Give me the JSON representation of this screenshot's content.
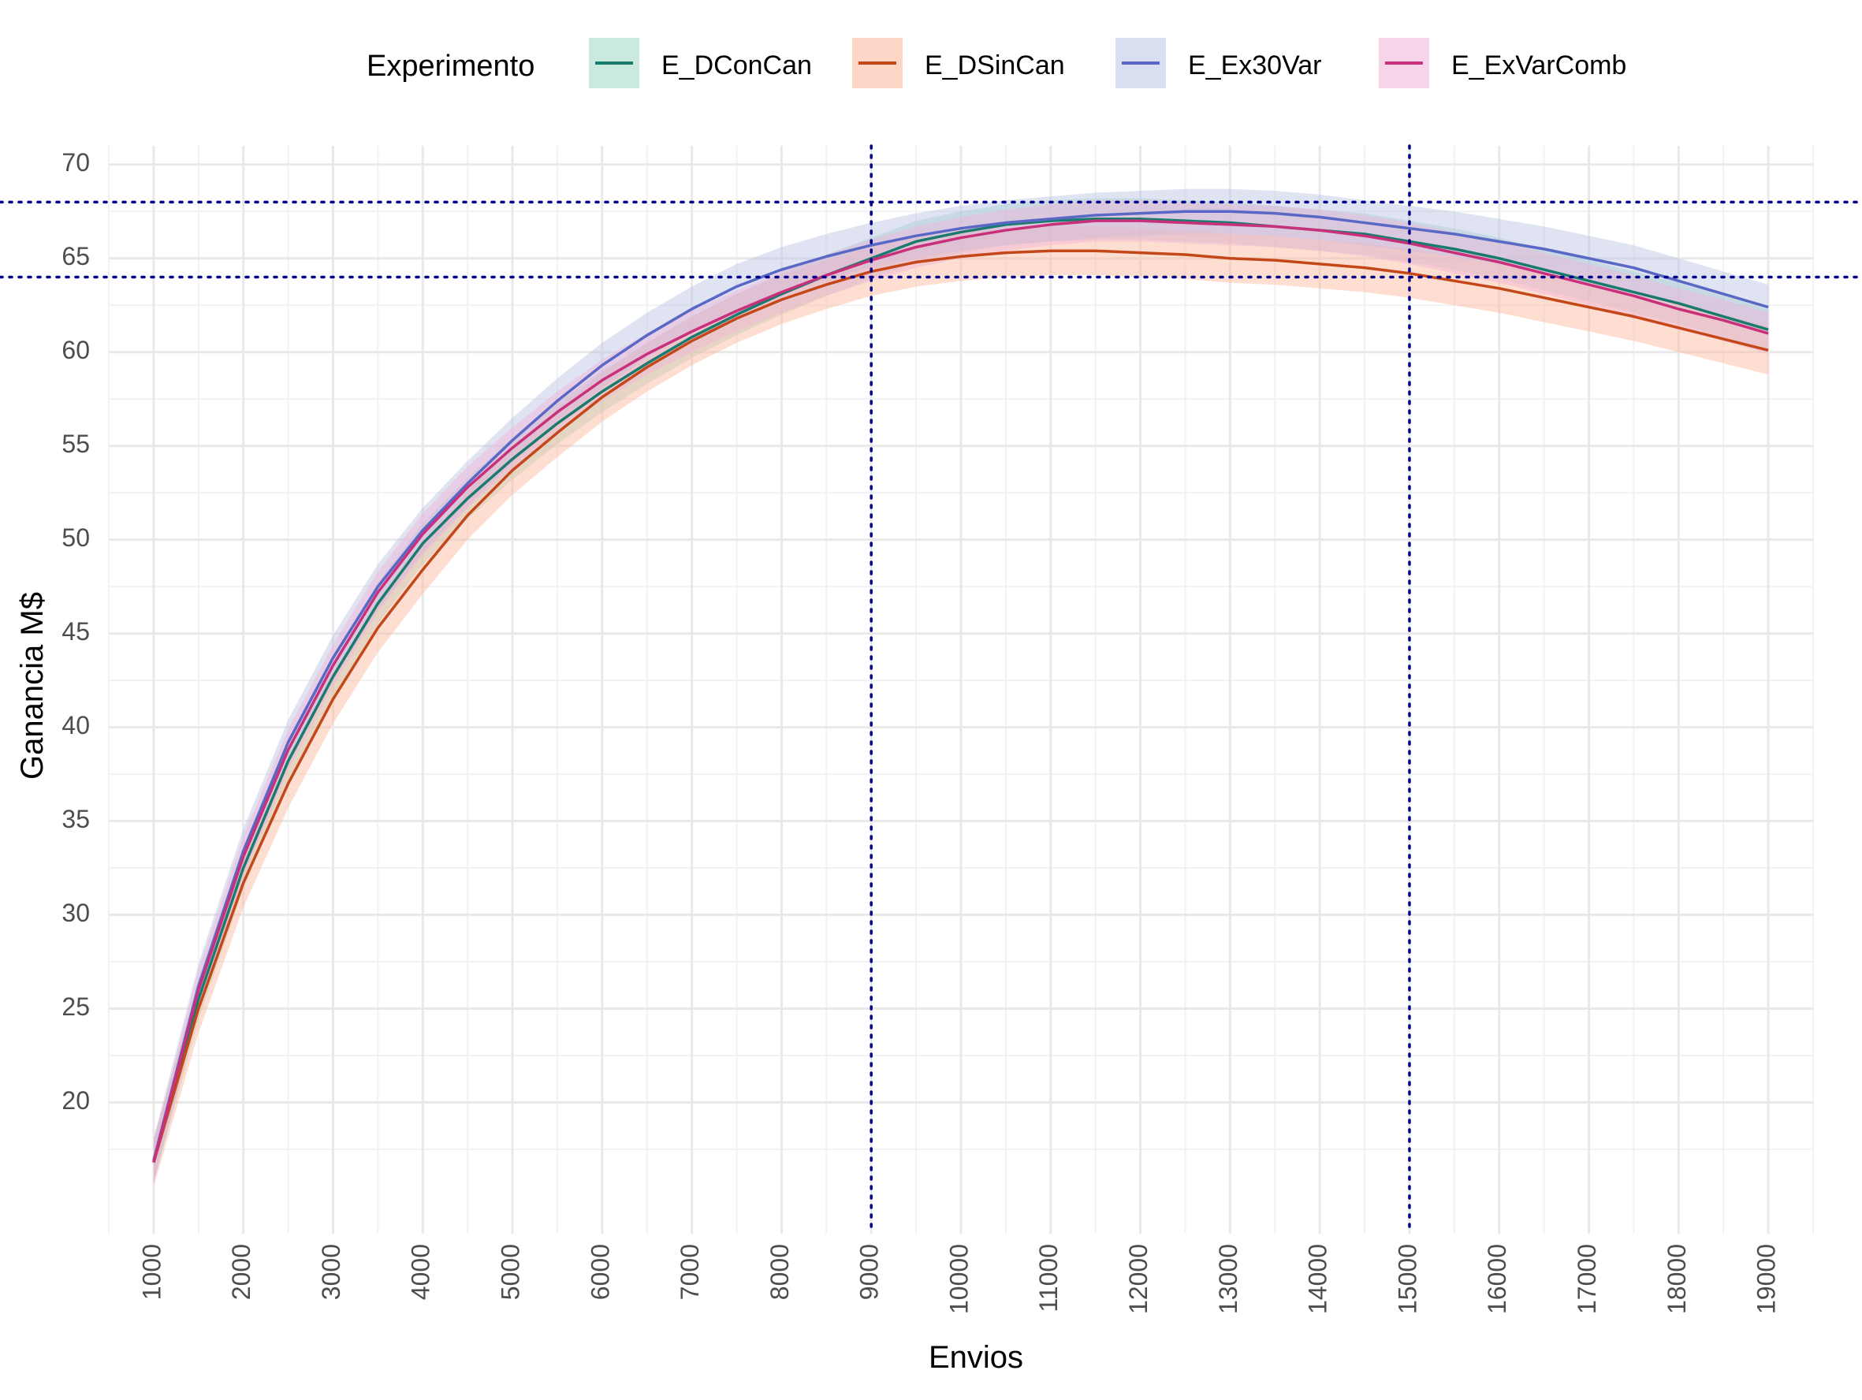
{
  "chart_data": {
    "type": "line",
    "title": "",
    "xlabel": "Envios",
    "ylabel": "Ganancia M$",
    "legend_title": "Experimento",
    "legend_position": "top",
    "xlim": [
      500,
      19500
    ],
    "ylim": [
      13,
      71
    ],
    "x_ticks": [
      1000,
      2000,
      3000,
      4000,
      5000,
      6000,
      7000,
      8000,
      9000,
      10000,
      11000,
      12000,
      13000,
      14000,
      15000,
      16000,
      17000,
      18000,
      19000
    ],
    "y_ticks": [
      20,
      25,
      30,
      35,
      40,
      45,
      50,
      55,
      60,
      65,
      70
    ],
    "x_tick_labels": [
      "1000",
      "2000",
      "3000",
      "4000",
      "5000",
      "6000",
      "7000",
      "8000",
      "9000",
      "10000",
      "11000",
      "12000",
      "13000",
      "14000",
      "15000",
      "16000",
      "17000",
      "18000",
      "19000"
    ],
    "y_tick_labels": [
      "20",
      "25",
      "30",
      "35",
      "40",
      "45",
      "50",
      "55",
      "60",
      "65",
      "70"
    ],
    "grid": true,
    "x": [
      1000,
      1500,
      2000,
      2500,
      3000,
      3500,
      4000,
      4500,
      5000,
      5500,
      6000,
      6500,
      7000,
      7500,
      8000,
      8500,
      9000,
      9500,
      10000,
      10500,
      11000,
      11500,
      12000,
      12500,
      13000,
      13500,
      14000,
      14500,
      15000,
      15500,
      16000,
      16500,
      17000,
      17500,
      18000,
      18500,
      19000
    ],
    "series": [
      {
        "name": "E_DConCan",
        "color": "#1b7a6e",
        "band_color": "#9fd9c6",
        "values": [
          16.8,
          25.5,
          32.5,
          38.2,
          42.7,
          46.6,
          49.8,
          52.2,
          54.3,
          56.2,
          57.9,
          59.4,
          60.8,
          62.0,
          63.1,
          64.1,
          65.0,
          65.9,
          66.4,
          66.8,
          67.0,
          67.1,
          67.1,
          67.0,
          66.9,
          66.7,
          66.5,
          66.3,
          65.9,
          65.5,
          65.0,
          64.4,
          63.8,
          63.2,
          62.6,
          61.9,
          61.2
        ],
        "band_width": 1.1
      },
      {
        "name": "E_DSinCan",
        "color": "#c4471a",
        "band_color": "#fcb59a",
        "values": [
          16.8,
          25.0,
          31.7,
          37.0,
          41.5,
          45.3,
          48.4,
          51.3,
          53.7,
          55.7,
          57.6,
          59.2,
          60.6,
          61.8,
          62.8,
          63.6,
          64.3,
          64.8,
          65.1,
          65.3,
          65.4,
          65.4,
          65.3,
          65.2,
          65.0,
          64.9,
          64.7,
          64.5,
          64.2,
          63.8,
          63.4,
          62.9,
          62.4,
          61.9,
          61.3,
          60.7,
          60.1
        ],
        "band_width": 1.3
      },
      {
        "name": "E_Ex30Var",
        "color": "#5a68c5",
        "band_color": "#b9c2e3",
        "values": [
          16.9,
          26.2,
          33.4,
          39.2,
          43.7,
          47.5,
          50.5,
          53.0,
          55.3,
          57.4,
          59.3,
          60.9,
          62.3,
          63.5,
          64.4,
          65.1,
          65.7,
          66.2,
          66.6,
          66.9,
          67.1,
          67.3,
          67.4,
          67.5,
          67.5,
          67.4,
          67.2,
          66.9,
          66.6,
          66.3,
          65.9,
          65.5,
          65.0,
          64.5,
          63.8,
          63.1,
          62.4
        ],
        "band_width": 1.2
      },
      {
        "name": "E_ExVarComb",
        "color": "#c9307c",
        "band_color": "#f1b3d6",
        "values": [
          16.8,
          26.0,
          33.1,
          38.8,
          43.3,
          47.2,
          50.3,
          52.8,
          54.9,
          56.8,
          58.5,
          59.9,
          61.1,
          62.2,
          63.2,
          64.1,
          64.9,
          65.6,
          66.1,
          66.5,
          66.8,
          67.0,
          67.0,
          66.9,
          66.8,
          66.7,
          66.5,
          66.2,
          65.8,
          65.3,
          64.8,
          64.2,
          63.6,
          63.0,
          62.3,
          61.7,
          61.0
        ],
        "band_width": 1.1
      }
    ],
    "reference_lines": {
      "color": "#00008b",
      "vertical": [
        9000,
        15000
      ],
      "horizontal": [
        64,
        68
      ]
    }
  }
}
